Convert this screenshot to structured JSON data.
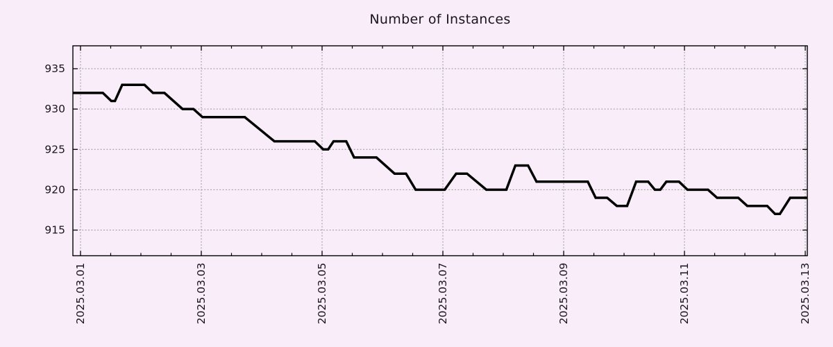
{
  "page": {
    "background_color": "#f8edf8",
    "text_color": "#1a1420"
  },
  "chart_data": {
    "type": "line",
    "title": "Number of Instances",
    "xlabel": "",
    "ylabel": "",
    "grid": true,
    "legend": false,
    "line_color": "#000000",
    "grid_color": "#999999",
    "axis_color": "#000000",
    "x_axis": {
      "unit_days_from_first_label": true,
      "range": [
        -0.126,
        12.034
      ],
      "major_tick_step_days": 2,
      "minor_tick_step_days": 0.5,
      "major_ticks": [
        {
          "t": 0,
          "label": "2025.03.01"
        },
        {
          "t": 2,
          "label": "2025.03.03"
        },
        {
          "t": 4,
          "label": "2025.03.05"
        },
        {
          "t": 6,
          "label": "2025.03.07"
        },
        {
          "t": 8,
          "label": "2025.03.09"
        },
        {
          "t": 10,
          "label": "2025.03.11"
        },
        {
          "t": 12,
          "label": "2025.03.13"
        }
      ]
    },
    "y_axis": {
      "range": [
        911.82,
        937.84
      ],
      "ticks": [
        915,
        920,
        925,
        930,
        935
      ]
    },
    "series": [
      {
        "name": "instances",
        "points": [
          [
            -0.126,
            932
          ],
          [
            0.37,
            932
          ],
          [
            0.51,
            931
          ],
          [
            0.57,
            931
          ],
          [
            0.69,
            933
          ],
          [
            1.06,
            933
          ],
          [
            1.2,
            932
          ],
          [
            1.39,
            932
          ],
          [
            1.69,
            930
          ],
          [
            1.87,
            930
          ],
          [
            2.02,
            929
          ],
          [
            2.72,
            929
          ],
          [
            3.21,
            926
          ],
          [
            3.88,
            926
          ],
          [
            4.02,
            925
          ],
          [
            4.1,
            925
          ],
          [
            4.19,
            926
          ],
          [
            4.4,
            926
          ],
          [
            4.53,
            924
          ],
          [
            4.9,
            924
          ],
          [
            5.2,
            922
          ],
          [
            5.39,
            922
          ],
          [
            5.55,
            920
          ],
          [
            6.03,
            920
          ],
          [
            6.22,
            922
          ],
          [
            6.4,
            922
          ],
          [
            6.72,
            920
          ],
          [
            7.05,
            920
          ],
          [
            7.2,
            923
          ],
          [
            7.41,
            923
          ],
          [
            7.55,
            921
          ],
          [
            8.4,
            921
          ],
          [
            8.53,
            919
          ],
          [
            8.72,
            919
          ],
          [
            8.88,
            918
          ],
          [
            9.05,
            918
          ],
          [
            9.2,
            921
          ],
          [
            9.4,
            921
          ],
          [
            9.51,
            920
          ],
          [
            9.6,
            920
          ],
          [
            9.7,
            921
          ],
          [
            9.91,
            921
          ],
          [
            10.05,
            920
          ],
          [
            10.39,
            920
          ],
          [
            10.54,
            919
          ],
          [
            10.89,
            919
          ],
          [
            11.04,
            918
          ],
          [
            11.37,
            918
          ],
          [
            11.5,
            917
          ],
          [
            11.58,
            917
          ],
          [
            11.75,
            919
          ],
          [
            12.034,
            919
          ]
        ]
      }
    ]
  }
}
